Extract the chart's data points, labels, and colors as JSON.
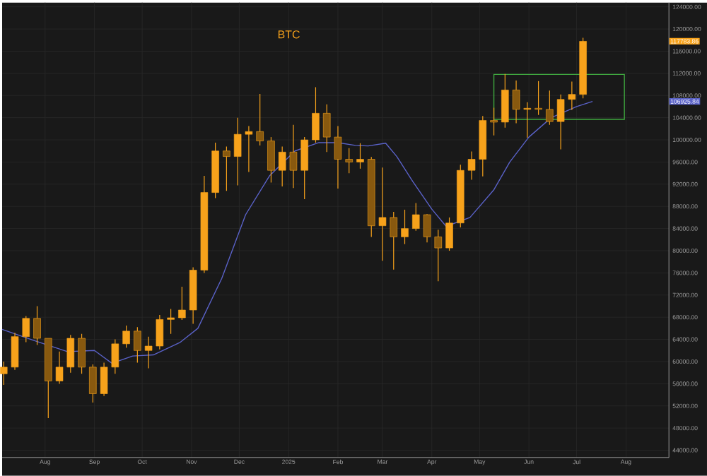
{
  "chart_data": {
    "type": "candlestick",
    "title": "BTC",
    "x": [
      "2024-07-06",
      "2024-07-13",
      "2024-07-20",
      "2024-07-27",
      "2024-08-03",
      "2024-08-10",
      "2024-08-17",
      "2024-08-24",
      "2024-08-31",
      "2024-09-07",
      "2024-09-14",
      "2024-09-21",
      "2024-09-28",
      "2024-10-05",
      "2024-10-12",
      "2024-10-19",
      "2024-10-26",
      "2024-11-02",
      "2024-11-09",
      "2024-11-16",
      "2024-11-23",
      "2024-11-30",
      "2024-12-07",
      "2024-12-14",
      "2024-12-21",
      "2024-12-28",
      "2025-01-04",
      "2025-01-11",
      "2025-01-18",
      "2025-01-25",
      "2025-02-01",
      "2025-02-08",
      "2025-02-15",
      "2025-02-22",
      "2025-03-01",
      "2025-03-08",
      "2025-03-15",
      "2025-03-22",
      "2025-03-29",
      "2025-04-05",
      "2025-04-12",
      "2025-04-19",
      "2025-04-26",
      "2025-05-03",
      "2025-05-10",
      "2025-05-17",
      "2025-05-24",
      "2025-05-31",
      "2025-06-07",
      "2025-06-14",
      "2025-06-21",
      "2025-06-28",
      "2025-07-05"
    ],
    "ohlc": [
      [
        57800,
        60000,
        55800,
        59000
      ],
      [
        59000,
        65200,
        58500,
        64500
      ],
      [
        64500,
        68200,
        63500,
        67800
      ],
      [
        67800,
        70000,
        63000,
        64200
      ],
      [
        64200,
        64200,
        49800,
        56500
      ],
      [
        56500,
        61800,
        56000,
        59000
      ],
      [
        59000,
        64800,
        58000,
        64200
      ],
      [
        64200,
        65000,
        57800,
        59000
      ],
      [
        59000,
        59500,
        52600,
        54200
      ],
      [
        54200,
        59800,
        53800,
        59000
      ],
      [
        59000,
        64000,
        57800,
        63200
      ],
      [
        63200,
        66500,
        62500,
        65500
      ],
      [
        65500,
        66200,
        59800,
        62000
      ],
      [
        62000,
        64500,
        58800,
        62800
      ],
      [
        62800,
        68400,
        62200,
        67600
      ],
      [
        67600,
        69500,
        65000,
        67900
      ],
      [
        67900,
        73500,
        67500,
        69300
      ],
      [
        69300,
        77000,
        66800,
        76500
      ],
      [
        76500,
        93500,
        76000,
        90500
      ],
      [
        90500,
        99500,
        89500,
        98000
      ],
      [
        98000,
        98800,
        90800,
        97000
      ],
      [
        97000,
        104000,
        91800,
        101000
      ],
      [
        101000,
        102500,
        94200,
        101500
      ],
      [
        101500,
        108300,
        99000,
        99800
      ],
      [
        99800,
        100500,
        92300,
        94500
      ],
      [
        94500,
        98800,
        91600,
        97800
      ],
      [
        97800,
        102700,
        91300,
        94500
      ],
      [
        94500,
        100500,
        89300,
        100000
      ],
      [
        100000,
        109500,
        99500,
        104800
      ],
      [
        104800,
        106400,
        97800,
        100500
      ],
      [
        100500,
        102500,
        91200,
        96500
      ],
      [
        96500,
        98500,
        94000,
        96000
      ],
      [
        96000,
        99400,
        94800,
        96500
      ],
      [
        96500,
        96900,
        82500,
        84500
      ],
      [
        84500,
        95000,
        78200,
        86000
      ],
      [
        86000,
        87000,
        76600,
        82500
      ],
      [
        82500,
        87400,
        81200,
        84000
      ],
      [
        84000,
        88600,
        83600,
        86500
      ],
      [
        86500,
        86600,
        81500,
        82500
      ],
      [
        82500,
        83800,
        74500,
        80500
      ],
      [
        80500,
        86000,
        80000,
        85000
      ],
      [
        85000,
        95500,
        84200,
        94500
      ],
      [
        94500,
        97900,
        92800,
        96500
      ],
      [
        96500,
        104300,
        93400,
        103500
      ],
      [
        103500,
        105800,
        100800,
        103200
      ],
      [
        103200,
        111900,
        102200,
        109000
      ],
      [
        109000,
        110700,
        103000,
        105500
      ],
      [
        105500,
        106800,
        100400,
        105700
      ],
      [
        105700,
        110600,
        104500,
        105500
      ],
      [
        105500,
        108900,
        102700,
        103300
      ],
      [
        103300,
        108200,
        98300,
        107300
      ],
      [
        107300,
        110500,
        105400,
        108200
      ],
      [
        108200,
        118400,
        107500,
        117783.86
      ]
    ],
    "color": "#f7a21b",
    "series": [
      {
        "type": "line",
        "color": "#5a62c8",
        "x": [
          "2024-07-05",
          "2024-07-25",
          "2024-08-15",
          "2024-09-01",
          "2024-09-12",
          "2024-09-25",
          "2024-10-08",
          "2024-10-25",
          "2024-11-05",
          "2024-11-20",
          "2024-12-05",
          "2024-12-20",
          "2025-01-05",
          "2025-01-20",
          "2025-02-01",
          "2025-02-12",
          "2025-02-20",
          "2025-03-03",
          "2025-03-10",
          "2025-03-20",
          "2025-04-01",
          "2025-04-10",
          "2025-04-25",
          "2025-05-10",
          "2025-05-20",
          "2025-06-01",
          "2025-06-15",
          "2025-07-01",
          "2025-07-11"
        ],
        "values": [
          65800,
          63800,
          61800,
          62000,
          59700,
          61000,
          61200,
          63500,
          66000,
          75000,
          86500,
          93500,
          98000,
          99500,
          99500,
          99000,
          98900,
          99400,
          97000,
          92500,
          87500,
          84400,
          86000,
          91000,
          96000,
          100500,
          104000,
          106000,
          106925.84
        ]
      }
    ],
    "annotations": [
      "117783.86",
      "106925.84"
    ],
    "xlim": [
      "2024-07-05",
      "2025-08-28"
    ],
    "xticks": [
      {
        "value": "2024-08-01",
        "label": "Aug"
      },
      {
        "value": "2024-09-01",
        "label": "Sep"
      },
      {
        "value": "2024-10-01",
        "label": "Oct"
      },
      {
        "value": "2024-11-01",
        "label": "Nov"
      },
      {
        "value": "2024-12-01",
        "label": "Dec"
      },
      {
        "value": "2025-01-01",
        "label": "2025"
      },
      {
        "value": "2025-02-01",
        "label": "Feb"
      },
      {
        "value": "2025-03-01",
        "label": "Mar"
      },
      {
        "value": "2025-04-01",
        "label": "Apr"
      },
      {
        "value": "2025-05-01",
        "label": "May"
      },
      {
        "value": "2025-06-01",
        "label": "Jun"
      },
      {
        "value": "2025-07-01",
        "label": "Jul"
      },
      {
        "value": "2025-08-01",
        "label": "Aug"
      }
    ],
    "ylim": [
      42700,
      124760
    ],
    "yticks": [
      {
        "value": 44000,
        "label": "44000.00"
      },
      {
        "value": 48000,
        "label": "48000.00"
      },
      {
        "value": 52000,
        "label": "52000.00"
      },
      {
        "value": 56000,
        "label": "56000.00"
      },
      {
        "value": 60000,
        "label": "60000.00"
      },
      {
        "value": 64000,
        "label": "64000.00"
      },
      {
        "value": 68000,
        "label": "68000.00"
      },
      {
        "value": 72000,
        "label": "72000.00"
      },
      {
        "value": 76000,
        "label": "76000.00"
      },
      {
        "value": 80000,
        "label": "80000.00"
      },
      {
        "value": 84000,
        "label": "84000.00"
      },
      {
        "value": 88000,
        "label": "88000.00"
      },
      {
        "value": 92000,
        "label": "92000.00"
      },
      {
        "value": 96000,
        "label": "96000.00"
      },
      {
        "value": 100000,
        "label": "100000.00"
      },
      {
        "value": 104000,
        "label": "104000.00"
      },
      {
        "value": 108000,
        "label": "108000.00"
      },
      {
        "value": 112000,
        "label": "112000.00"
      },
      {
        "value": 116000,
        "label": "116000.00"
      },
      {
        "value": 120000,
        "label": "120000.00"
      },
      {
        "value": 124000,
        "label": "124000.00"
      }
    ],
    "grid": true
  }
}
